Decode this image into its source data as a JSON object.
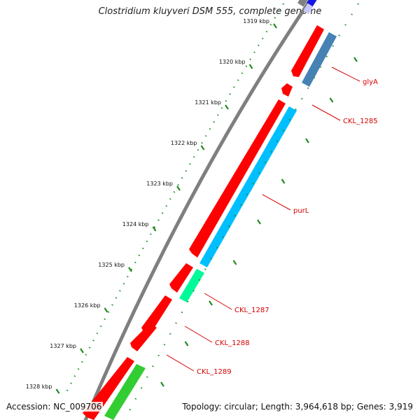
{
  "title": "Clostridium kluyveri DSM 555, complete genome",
  "accession": "Accession: NC_009706",
  "topology": "Topology: circular; Length: 3,964,618 bp; Genes: 3,919",
  "ticks": [
    {
      "label": "1319 kbp"
    },
    {
      "label": "1320 kbp"
    },
    {
      "label": "1321 kbp"
    },
    {
      "label": "1322 kbp"
    },
    {
      "label": "1323 kbp"
    },
    {
      "label": "1324 kbp"
    },
    {
      "label": "1325 kbp"
    },
    {
      "label": "1326 kbp"
    },
    {
      "label": "1327 kbp"
    },
    {
      "label": "1328 kbp"
    }
  ],
  "gene_labels": [
    "glyA",
    "CKL_1285",
    "purL",
    "CKL_1287",
    "CKL_1288",
    "CKL_1289"
  ],
  "colors": {
    "cds": "#ff0000",
    "label": "#d40000",
    "glyA_feature": "#4682b4",
    "purL_feature": "#00bfff",
    "CKL_1287_feature": "#00fa9a",
    "CKL_1289_feature": "#32cd32",
    "backbone": "#808080",
    "ticks": "#228b22"
  }
}
